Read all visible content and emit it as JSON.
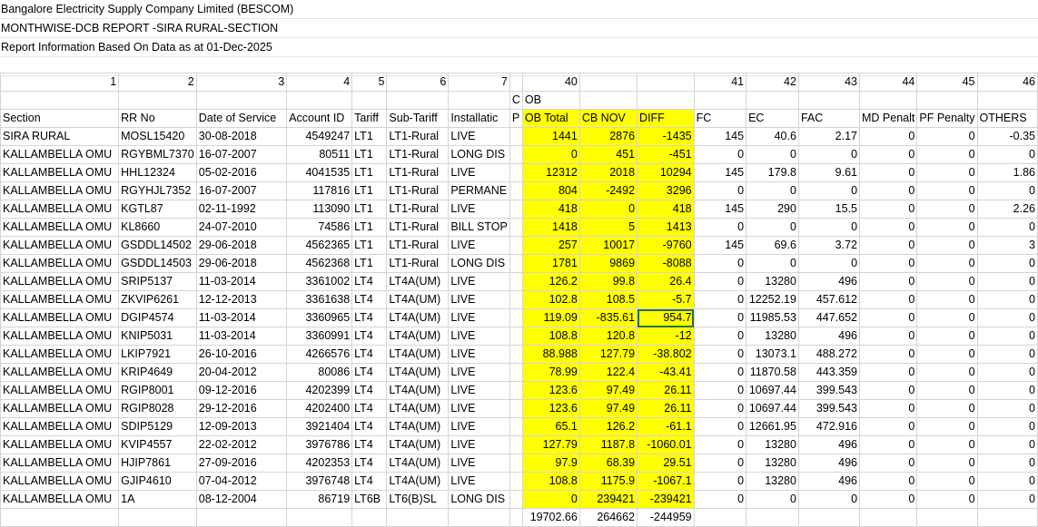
{
  "titles": [
    "Bangalore Electricity Supply Company Limited (BESCOM)",
    "MONTHWISE-DCB REPORT -SIRA RURAL-SECTION",
    "Report Information Based On Data as at 01-Dec-2025"
  ],
  "col_numbers": [
    "1",
    "2",
    "3",
    "4",
    "5",
    "6",
    "7",
    "",
    "40",
    "",
    "",
    "41",
    "42",
    "43",
    "44",
    "45",
    "46"
  ],
  "group_row": [
    "",
    "",
    "",
    "",
    "",
    "",
    "",
    "C",
    "OB",
    "",
    "",
    "",
    "",
    "",
    "",
    "",
    ""
  ],
  "headers": [
    "Section",
    "RR No",
    "Date of Service",
    "Account ID",
    "Tariff",
    "Sub-Tariff",
    "Installatic",
    "P",
    "OB Total",
    "CB NOV",
    "DIFF",
    "FC",
    "EC",
    "FAC",
    "MD Penalt",
    "PF Penalty",
    "OTHERS"
  ],
  "rows": [
    [
      "SIRA RURAL",
      "MOSL15420",
      "30-08-2018",
      "4549247",
      "LT1",
      "LT1-Rural",
      "LIVE",
      "",
      "1441",
      "2876",
      "-1435",
      "145",
      "40.6",
      "2.17",
      "0",
      "0",
      "-0.35"
    ],
    [
      "KALLAMBELLA OMU",
      "RGYBML7370",
      "16-07-2007",
      "80511",
      "LT1",
      "LT1-Rural",
      "LONG DIS",
      "",
      "0",
      "451",
      "-451",
      "0",
      "0",
      "0",
      "0",
      "0",
      "0"
    ],
    [
      "KALLAMBELLA OMU",
      "HHL12324",
      "05-02-2016",
      "4041535",
      "LT1",
      "LT1-Rural",
      "LIVE",
      "",
      "12312",
      "2018",
      "10294",
      "145",
      "179.8",
      "9.61",
      "0",
      "0",
      "1.86"
    ],
    [
      "KALLAMBELLA OMU",
      "RGYHJL7352",
      "16-07-2007",
      "117816",
      "LT1",
      "LT1-Rural",
      "PERMANE",
      "",
      "804",
      "-2492",
      "3296",
      "0",
      "0",
      "0",
      "0",
      "0",
      "0"
    ],
    [
      "KALLAMBELLA OMU",
      "KGTL87",
      "02-11-1992",
      "113090",
      "LT1",
      "LT1-Rural",
      "LIVE",
      "",
      "418",
      "0",
      "418",
      "145",
      "290",
      "15.5",
      "0",
      "0",
      "2.26"
    ],
    [
      "KALLAMBELLA OMU",
      "KL8660",
      "24-07-2010",
      "74586",
      "LT1",
      "LT1-Rural",
      "BILL STOP",
      "",
      "1418",
      "5",
      "1413",
      "0",
      "0",
      "0",
      "0",
      "0",
      "0"
    ],
    [
      "KALLAMBELLA OMU",
      "GSDDL14502",
      "29-06-2018",
      "4562365",
      "LT1",
      "LT1-Rural",
      "LIVE",
      "",
      "257",
      "10017",
      "-9760",
      "145",
      "69.6",
      "3.72",
      "0",
      "0",
      "3"
    ],
    [
      "KALLAMBELLA OMU",
      "GSDDL14503",
      "29-06-2018",
      "4562368",
      "LT1",
      "LT1-Rural",
      "LONG DIS",
      "",
      "1781",
      "9869",
      "-8088",
      "0",
      "0",
      "0",
      "0",
      "0",
      "0"
    ],
    [
      "KALLAMBELLA OMU",
      "SRIP5137",
      "11-03-2014",
      "3361002",
      "LT4",
      "LT4A(UM)",
      "LIVE",
      "",
      "126.2",
      "99.8",
      "26.4",
      "0",
      "13280",
      "496",
      "0",
      "0",
      "0"
    ],
    [
      "KALLAMBELLA OMU",
      "ZKVIP6261",
      "12-12-2013",
      "3361638",
      "LT4",
      "LT4A(UM)",
      "LIVE",
      "",
      "102.8",
      "108.5",
      "-5.7",
      "0",
      "12252.19",
      "457.612",
      "0",
      "0",
      "0"
    ],
    [
      "KALLAMBELLA OMU",
      "DGIP4574",
      "11-03-2014",
      "3360965",
      "LT4",
      "LT4A(UM)",
      "LIVE",
      "",
      "119.09",
      "-835.61",
      "954.7",
      "0",
      "11985.53",
      "447.652",
      "0",
      "0",
      "0"
    ],
    [
      "KALLAMBELLA OMU",
      "KNIP5031",
      "11-03-2014",
      "3360991",
      "LT4",
      "LT4A(UM)",
      "LIVE",
      "",
      "108.8",
      "120.8",
      "-12",
      "0",
      "13280",
      "496",
      "0",
      "0",
      "0"
    ],
    [
      "KALLAMBELLA OMU",
      "LKIP7921",
      "26-10-2016",
      "4266576",
      "LT4",
      "LT4A(UM)",
      "LIVE",
      "",
      "88.988",
      "127.79",
      "-38.802",
      "0",
      "13073.1",
      "488.272",
      "0",
      "0",
      "0"
    ],
    [
      "KALLAMBELLA OMU",
      "KRIP4649",
      "20-04-2012",
      "80086",
      "LT4",
      "LT4A(UM)",
      "LIVE",
      "",
      "78.99",
      "122.4",
      "-43.41",
      "0",
      "11870.58",
      "443.359",
      "0",
      "0",
      "0"
    ],
    [
      "KALLAMBELLA OMU",
      "RGIP8001",
      "09-12-2016",
      "4202399",
      "LT4",
      "LT4A(UM)",
      "LIVE",
      "",
      "123.6",
      "97.49",
      "26.11",
      "0",
      "10697.44",
      "399.543",
      "0",
      "0",
      "0"
    ],
    [
      "KALLAMBELLA OMU",
      "RGIP8028",
      "29-12-2016",
      "4202400",
      "LT4",
      "LT4A(UM)",
      "LIVE",
      "",
      "123.6",
      "97.49",
      "26.11",
      "0",
      "10697.44",
      "399.543",
      "0",
      "0",
      "0"
    ],
    [
      "KALLAMBELLA OMU",
      "SDIP5129",
      "12-09-2013",
      "3921404",
      "LT4",
      "LT4A(UM)",
      "LIVE",
      "",
      "65.1",
      "126.2",
      "-61.1",
      "0",
      "12661.95",
      "472.916",
      "0",
      "0",
      "0"
    ],
    [
      "KALLAMBELLA OMU",
      "KVIP4557",
      "22-02-2012",
      "3976786",
      "LT4",
      "LT4A(UM)",
      "LIVE",
      "",
      "127.79",
      "1187.8",
      "-1060.01",
      "0",
      "13280",
      "496",
      "0",
      "0",
      "0"
    ],
    [
      "KALLAMBELLA OMU",
      "HJIP7861",
      "27-09-2016",
      "4202353",
      "LT4",
      "LT4A(UM)",
      "LIVE",
      "",
      "97.9",
      "68.39",
      "29.51",
      "0",
      "13280",
      "496",
      "0",
      "0",
      "0"
    ],
    [
      "KALLAMBELLA OMU",
      "GJIP4610",
      "07-04-2012",
      "3976748",
      "LT4",
      "LT4A(UM)",
      "LIVE",
      "",
      "108.8",
      "1175.9",
      "-1067.1",
      "0",
      "13280",
      "496",
      "0",
      "0",
      "0"
    ],
    [
      "KALLAMBELLA OMU",
      "1A",
      "08-12-2004",
      "86719",
      "LT6B",
      "LT6(B)SL",
      "LONG DIS",
      "",
      "0",
      "239421",
      "-239421",
      "0",
      "0",
      "0",
      "0",
      "0",
      "0"
    ]
  ],
  "totals": [
    "",
    "",
    "",
    "",
    "",
    "",
    "",
    "",
    "19702.66",
    "264662",
    "-244959",
    "",
    "",
    "",
    "",
    "",
    ""
  ],
  "highlight_color": "#ffff00",
  "selected_cell": "DIFF row DGIP4574"
}
